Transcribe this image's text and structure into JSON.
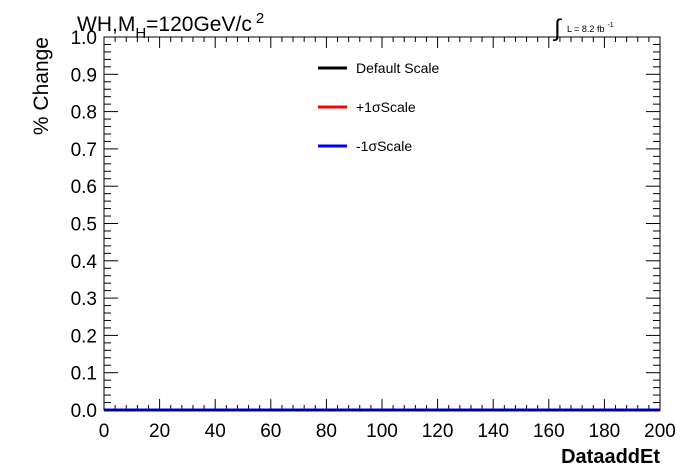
{
  "chart_data": {
    "type": "line",
    "title_parts": {
      "base": "WH,M",
      "sub": "H",
      "rest": "=120GeV/c",
      "sup": "2"
    },
    "lumi": {
      "symbol": "∫",
      "text": "L = 8.2 fb",
      "sup": "-1"
    },
    "xlabel": "DataaddEt",
    "ylabel": "% Change",
    "xlim": [
      0,
      200
    ],
    "ylim": [
      0,
      1
    ],
    "x_ticks": [
      "0",
      "20",
      "40",
      "60",
      "80",
      "100",
      "120",
      "140",
      "160",
      "180",
      "200"
    ],
    "y_ticks": [
      "0.0",
      "0.1",
      "0.2",
      "0.3",
      "0.4",
      "0.5",
      "0.6",
      "0.7",
      "0.8",
      "0.9",
      "1.0"
    ],
    "legend_position": "top-center",
    "grid": false,
    "x": [
      0,
      200
    ],
    "series": [
      {
        "name": "Default Scale",
        "color": "#000000",
        "values": [
          0,
          0
        ]
      },
      {
        "name": "+1σScale",
        "color": "#ff0000",
        "values": [
          0,
          0
        ]
      },
      {
        "name": "-1σScale",
        "color": "#0000ff",
        "values": [
          0,
          0
        ]
      }
    ]
  }
}
